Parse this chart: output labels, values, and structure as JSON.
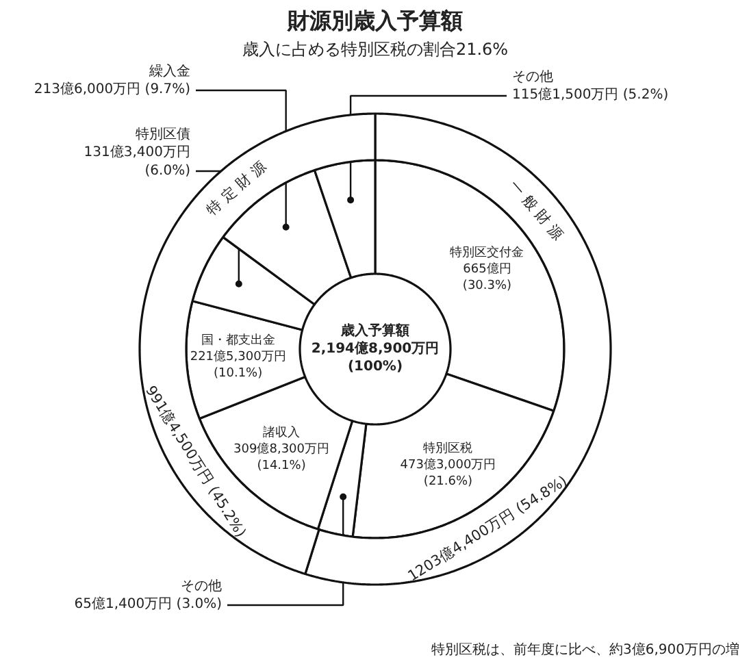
{
  "chart_data": {
    "type": "donut",
    "title": "財源別歳入予算額",
    "subtitle": "歳入に占める特別区税の割合21.6%",
    "categories": [
      "特別区交付金",
      "特別区税",
      "その他",
      "諸収入",
      "国・都支出金",
      "特別区債",
      "繰入金",
      "その他"
    ],
    "series": [
      {
        "values": [
          30.3,
          21.6,
          3.0,
          14.1,
          10.1,
          6.0,
          9.7,
          5.2
        ],
        "colors": [
          "#ffffff",
          "#ffffff",
          "#ffffff",
          "#ffffff",
          "#ffffff",
          "#ffffff",
          "#ffffff",
          "#ffffff"
        ],
        "value_labels": [
          "665億円\n(30.3%)",
          "473億3,000万円\n(21.6%)",
          "65億1,400万円 (3.0%)",
          "309億8,300万円\n(14.1%)",
          "221億5,300万円\n(10.1%)",
          "131億3,400万円\n(6.0%)",
          "213億6,000万円 (9.7%)",
          "115億1,500万円 (5.2%)"
        ]
      },
      {
        "values": [
          54.8,
          null,
          null,
          45.2,
          null,
          null,
          null,
          null
        ],
        "colors": [
          "#ffffff",
          null,
          null,
          "#ffffff",
          null,
          null,
          null,
          null
        ],
        "value_labels": [
          "1203億4,400万円 (54.8%)",
          null,
          null,
          "991億4,500万円 (45.2%)",
          null,
          null,
          null,
          null
        ]
      }
    ],
    "annotations": [
      "歳入予算額\n2,194億8,900万円\n(100%)",
      "特別区税は、前年度に比べ、約3億6,900万円の増",
      "一 般 財 源",
      "特 定 財 源"
    ]
  }
}
